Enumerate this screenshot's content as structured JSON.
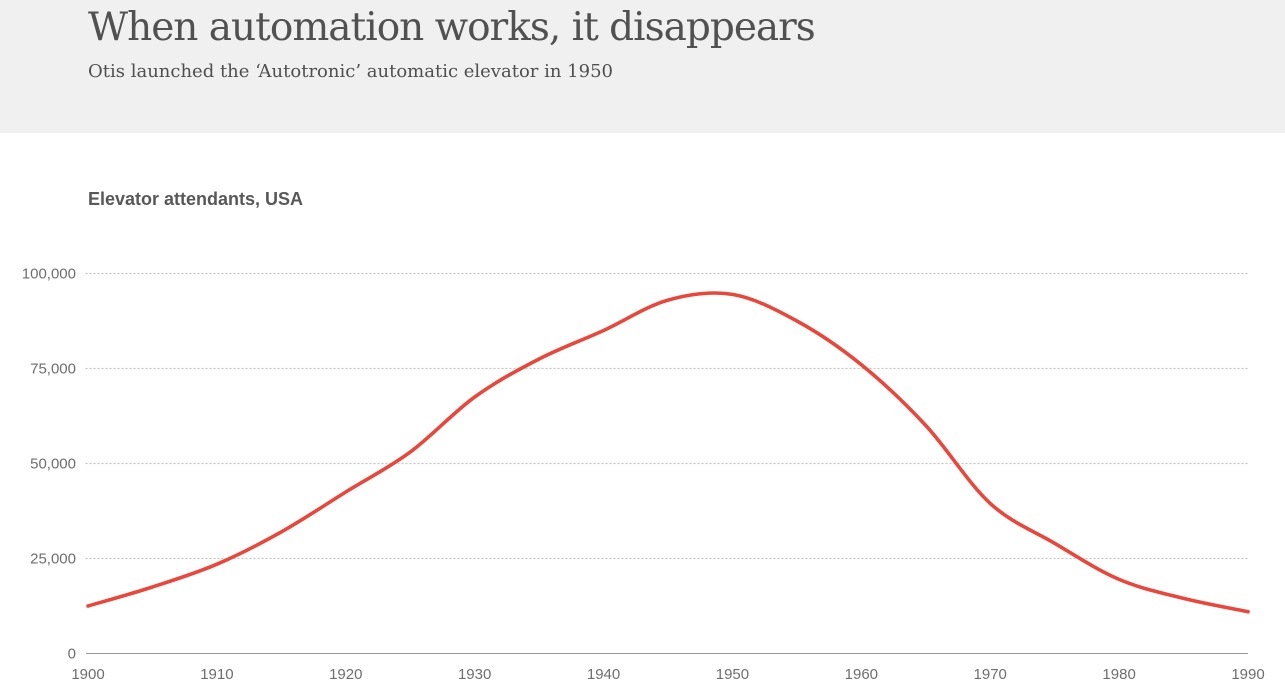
{
  "header": {
    "title": "When automation works, it disappears",
    "subtitle": "Otis launched the ‘Autotronic’ automatic elevator in 1950"
  },
  "chart": {
    "label": "Elevator attendants, USA"
  },
  "chart_data": {
    "type": "line",
    "title": "Elevator attendants, USA",
    "series_name": "Elevator attendants",
    "x": [
      1900,
      1905,
      1910,
      1915,
      1920,
      1925,
      1930,
      1935,
      1940,
      1945,
      1950,
      1955,
      1960,
      1965,
      1970,
      1975,
      1980,
      1985,
      1990
    ],
    "values": [
      12500,
      17500,
      23500,
      32000,
      42500,
      53000,
      67500,
      77500,
      85000,
      93000,
      94500,
      87500,
      76000,
      60000,
      39500,
      29000,
      19500,
      14500,
      11000
    ],
    "x_ticks": [
      1900,
      1910,
      1920,
      1930,
      1940,
      1950,
      1960,
      1970,
      1980,
      1990
    ],
    "y_ticks": [
      0,
      25000,
      50000,
      75000,
      100000
    ],
    "y_tick_labels": [
      "0",
      "25,000",
      "50,000",
      "75,000",
      "100,000"
    ],
    "xlim": [
      1900,
      1990
    ],
    "ylim": [
      0,
      100000
    ],
    "peak": {
      "year": 1950,
      "value": 94500
    },
    "grid": "horizontal-dotted",
    "legend": "none",
    "line_color": "#e8483c",
    "grid_color": "#c6c6c6",
    "axis_color": "#979797",
    "tick_label_color": "#6e6e6e",
    "header_bg_color": "#f0f0f0",
    "title_color": "#515151"
  }
}
